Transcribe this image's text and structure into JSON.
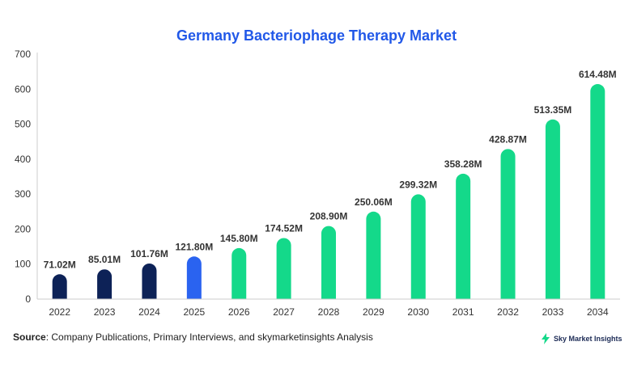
{
  "chart_data": {
    "type": "bar",
    "title": "Germany Bacteriophage Therapy Market",
    "categories": [
      "2022",
      "2023",
      "2024",
      "2025",
      "2026",
      "2027",
      "2028",
      "2029",
      "2030",
      "2031",
      "2032",
      "2033",
      "2034"
    ],
    "values": [
      71.02,
      85.01,
      101.76,
      121.8,
      145.8,
      174.52,
      208.9,
      250.06,
      299.32,
      358.28,
      428.87,
      513.35,
      614.48
    ],
    "data_labels": [
      "71.02M",
      "85.01M",
      "101.76M",
      "121.80M",
      "145.80M",
      "174.52M",
      "208.90M",
      "250.06M",
      "299.32M",
      "358.28M",
      "428.87M",
      "513.35M",
      "614.48M"
    ],
    "ylim": [
      0,
      700
    ],
    "yticks": [
      0,
      100,
      200,
      300,
      400,
      500,
      600,
      700
    ],
    "grid": false,
    "colors": {
      "historical": "#0d2257",
      "current": "#2a63f0",
      "forecast": "#14d98a"
    },
    "bar_groups": [
      "historical",
      "historical",
      "historical",
      "current",
      "forecast",
      "forecast",
      "forecast",
      "forecast",
      "forecast",
      "forecast",
      "forecast",
      "forecast",
      "forecast"
    ]
  },
  "source": {
    "label": "Source",
    "text": ": Company Publications, Primary Interviews, and skymarketinsights Analysis"
  },
  "brand": {
    "name": "Sky Market Insights",
    "logo_icon": "lightning-bolt-icon",
    "logo_color": "#14d98a"
  }
}
